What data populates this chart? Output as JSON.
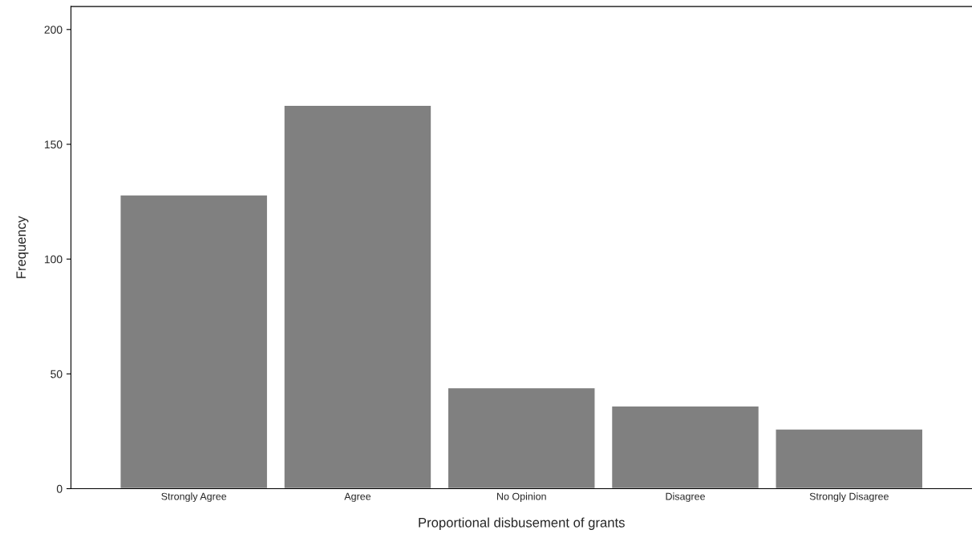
{
  "chart_data": {
    "type": "bar",
    "xlabel": "Proportional disbusement of grants",
    "ylabel": "Frequency",
    "categories": [
      "Strongly Agree",
      "Agree",
      "No Opinion",
      "Disagree",
      "Strongly Disagree"
    ],
    "values": [
      128,
      167,
      44,
      36,
      26
    ],
    "color": "#808080",
    "ylim": [
      0,
      210
    ],
    "yticks": [
      0,
      50,
      100,
      150,
      200
    ],
    "grid": false
  }
}
